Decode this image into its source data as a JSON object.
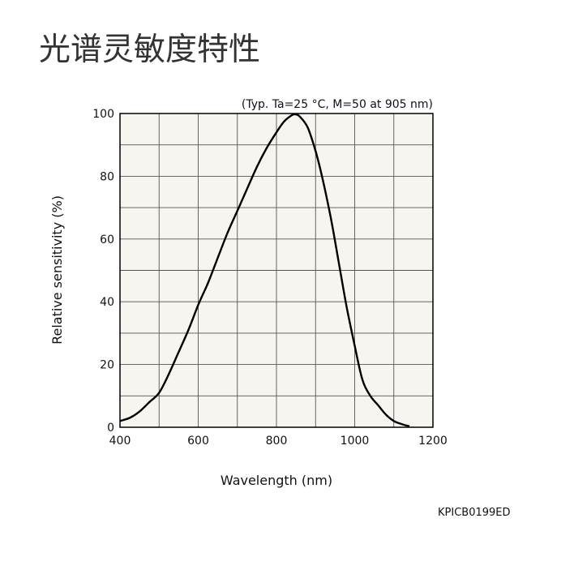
{
  "page_title": "光谱灵敏度特性",
  "figure_code": "KPICB0199ED",
  "colors": {
    "plot_background": "#f6f5f0",
    "grid": "#555555",
    "curve": "#000000"
  },
  "chart_data": {
    "type": "line",
    "title": "",
    "annotation": "(Typ. Ta=25 °C, M=50 at 905 nm)",
    "xlabel": "Wavelength (nm)",
    "ylabel": "Relative sensitivity (%)",
    "xlim": [
      400,
      1200
    ],
    "ylim": [
      0,
      100
    ],
    "x_ticks": [
      400,
      600,
      800,
      1000,
      1200
    ],
    "y_ticks": [
      0,
      20,
      40,
      60,
      80,
      100
    ],
    "grid": true,
    "series": [
      {
        "x": [
          400,
          425,
          450,
          475,
          500,
          525,
          550,
          575,
          600,
          625,
          650,
          675,
          700,
          725,
          750,
          775,
          800,
          820,
          840,
          850,
          860,
          880,
          900,
          920,
          940,
          960,
          980,
          1000,
          1020,
          1040,
          1060,
          1080,
          1100,
          1120,
          1140
        ],
        "y": [
          2,
          3,
          5,
          8,
          11,
          17,
          24,
          31,
          39,
          46,
          54,
          62,
          69,
          76,
          83,
          89,
          94,
          97.5,
          99.5,
          99.7,
          99,
          95.5,
          88,
          78,
          66,
          52,
          38,
          26,
          15,
          10,
          7,
          4,
          2,
          1,
          0.3
        ]
      }
    ]
  }
}
